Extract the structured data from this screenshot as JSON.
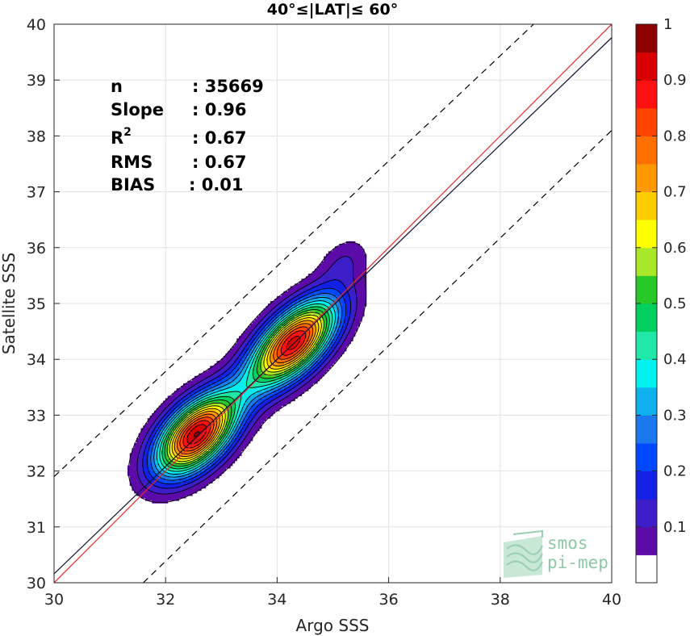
{
  "chart_data": {
    "type": "heatmap",
    "title": "40°≤|LAT|≤ 60°",
    "xlabel": "Argo SSS",
    "ylabel": "Satellite SSS",
    "xlim": [
      30,
      40
    ],
    "ylim": [
      30,
      40
    ],
    "xticks": [
      "30",
      "32",
      "34",
      "36",
      "38",
      "40"
    ],
    "yticks": [
      "30",
      "31",
      "32",
      "33",
      "34",
      "35",
      "36",
      "37",
      "38",
      "39",
      "40"
    ],
    "grid": true,
    "stats": [
      {
        "label": "n",
        "value": ": 35669"
      },
      {
        "label": "Slope",
        "value": ": 0.96"
      },
      {
        "label": "R",
        "sup": "2",
        "value": ": 0.67"
      },
      {
        "label": "RMS",
        "value": ": 0.67"
      },
      {
        "label": "BIAS",
        "value": ": 0.01"
      }
    ],
    "lines": [
      {
        "kind": "identity",
        "color": "#e8292a",
        "x": [
          30,
          40
        ],
        "y": [
          30,
          40
        ]
      },
      {
        "kind": "regression",
        "color": "#101030",
        "x": [
          30,
          40
        ],
        "y": [
          30.16,
          39.76
        ]
      },
      {
        "kind": "upper-bound",
        "dash": true,
        "color": "#000000",
        "x": [
          30,
          38.6
        ],
        "y": [
          31.9,
          40
        ]
      },
      {
        "kind": "lower-bound",
        "dash": true,
        "color": "#000000",
        "x": [
          31.6,
          40
        ],
        "y": [
          30,
          38.1
        ]
      }
    ],
    "density_peaks": [
      {
        "x": 32.55,
        "y": 32.65,
        "peak": 0.95
      },
      {
        "x": 34.3,
        "y": 34.3,
        "peak": 0.92
      }
    ],
    "colorbar": {
      "levels": [
        0.05,
        0.1,
        0.15,
        0.2,
        0.25,
        0.3,
        0.35,
        0.4,
        0.45,
        0.5,
        0.55,
        0.6,
        0.65,
        0.7,
        0.75,
        0.8,
        0.85,
        0.9,
        0.95,
        1.0
      ],
      "ticks": [
        "0.1",
        "0.2",
        "0.3",
        "0.4",
        "0.5",
        "0.6",
        "0.7",
        "0.8",
        "0.9",
        "1"
      ],
      "colors": [
        "#ffffff",
        "#5c0aa8",
        "#3d1ec8",
        "#1420e6",
        "#0048ff",
        "#1c78ee",
        "#0eb0ee",
        "#00f0f0",
        "#20e8a8",
        "#00d060",
        "#28c828",
        "#a8e828",
        "#ffff00",
        "#ffcc00",
        "#ff9900",
        "#ff7000",
        "#ff4400",
        "#ff1010",
        "#d80000",
        "#8c0000"
      ]
    },
    "logo": {
      "line1": "smos",
      "line2": "pi-mep"
    }
  }
}
